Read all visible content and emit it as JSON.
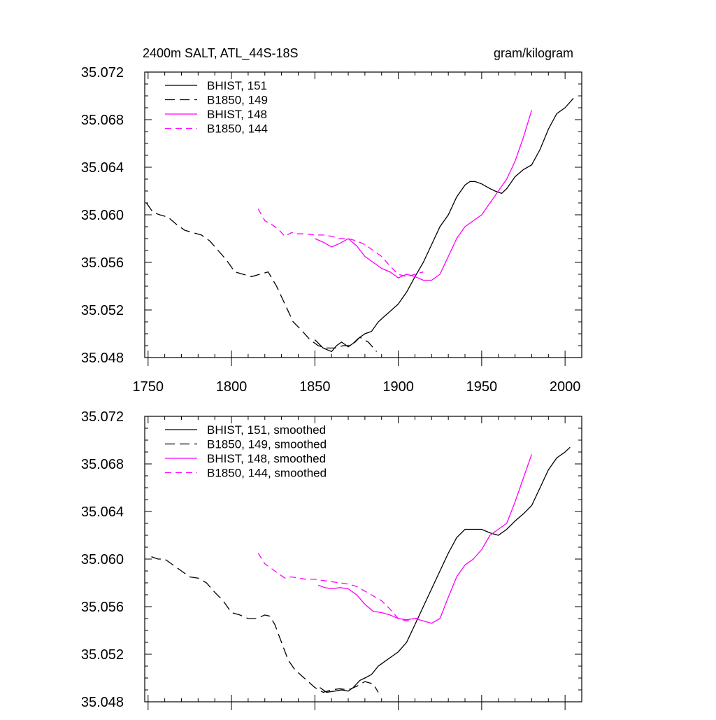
{
  "figure": {
    "title_left": "2400m SALT, ATL_44S-18S",
    "title_right": "gram/kilogram"
  },
  "colors": {
    "black": "#000000",
    "magenta": "#ff00ff"
  },
  "chart_data": [
    {
      "type": "line",
      "panel": "top",
      "title": "2400m SALT, ATL_44S-18S",
      "units": "gram/kilogram",
      "xlim": [
        1748,
        2010
      ],
      "ylim": [
        35.048,
        35.072
      ],
      "xticks": [
        1750,
        1800,
        1850,
        1900,
        1950,
        2000
      ],
      "yticks": [
        35.048,
        35.052,
        35.056,
        35.06,
        35.064,
        35.068,
        35.072
      ],
      "ytick_labels": [
        "35.048",
        "35.052",
        "35.056",
        "35.060",
        "35.064",
        "35.068",
        "35.072"
      ],
      "grid": false,
      "legend": "top-left",
      "series": [
        {
          "name": "BHIST, 151",
          "color": "#000000",
          "dash": "solid",
          "x": [
            1850,
            1855,
            1860,
            1863,
            1866,
            1870,
            1873,
            1876,
            1880,
            1884,
            1888,
            1892,
            1896,
            1900,
            1905,
            1910,
            1915,
            1920,
            1925,
            1930,
            1935,
            1940,
            1943,
            1946,
            1950,
            1955,
            1958,
            1962,
            1965,
            1970,
            1975,
            1980,
            1985,
            1990,
            1995,
            2000,
            2005
          ],
          "y": [
            35.0495,
            35.0488,
            35.0485,
            35.049,
            35.0493,
            35.0489,
            35.0492,
            35.0496,
            35.05,
            35.0502,
            35.051,
            35.0515,
            35.052,
            35.0525,
            35.0535,
            35.0548,
            35.056,
            35.0575,
            35.059,
            35.06,
            35.0615,
            35.0625,
            35.0628,
            35.0628,
            35.0626,
            35.0622,
            35.062,
            35.0618,
            35.0622,
            35.0632,
            35.0638,
            35.0642,
            35.0655,
            35.0672,
            35.0685,
            35.069,
            35.0698
          ]
        },
        {
          "name": "B1850, 149",
          "color": "#000000",
          "dash": "long",
          "x": [
            1749,
            1753,
            1757,
            1762,
            1767,
            1772,
            1777,
            1782,
            1787,
            1792,
            1797,
            1802,
            1807,
            1812,
            1817,
            1822,
            1827,
            1832,
            1837,
            1842,
            1847,
            1852,
            1857,
            1862,
            1867,
            1872,
            1877,
            1882,
            1887
          ],
          "y": [
            35.061,
            35.0602,
            35.06,
            35.0598,
            35.0592,
            35.0587,
            35.0585,
            35.0583,
            35.0578,
            35.057,
            35.0562,
            35.0552,
            35.055,
            35.0548,
            35.055,
            35.0552,
            35.054,
            35.0525,
            35.051,
            35.0503,
            35.0495,
            35.049,
            35.0488,
            35.0488,
            35.049,
            35.049,
            35.0497,
            35.0493,
            35.0485
          ]
        },
        {
          "name": "BHIST, 148",
          "color": "#ff00ff",
          "dash": "solid",
          "x": [
            1850,
            1855,
            1860,
            1865,
            1870,
            1875,
            1880,
            1885,
            1890,
            1895,
            1900,
            1905,
            1910,
            1915,
            1920,
            1925,
            1930,
            1935,
            1940,
            1945,
            1950,
            1955,
            1960,
            1965,
            1970,
            1975,
            1980
          ],
          "y": [
            35.058,
            35.0577,
            35.0573,
            35.0576,
            35.058,
            35.0574,
            35.0565,
            35.056,
            35.0555,
            35.0552,
            35.0547,
            35.055,
            35.0548,
            35.0545,
            35.0545,
            35.055,
            35.0565,
            35.058,
            35.059,
            35.0595,
            35.06,
            35.061,
            35.062,
            35.063,
            35.0645,
            35.0665,
            35.0688
          ]
        },
        {
          "name": "B1850, 144",
          "color": "#ff00ff",
          "dash": "medium",
          "x": [
            1816,
            1820,
            1824,
            1828,
            1832,
            1836,
            1840,
            1845,
            1850,
            1855,
            1860,
            1865,
            1870,
            1875,
            1880,
            1885,
            1890,
            1895,
            1900,
            1905,
            1910,
            1915
          ],
          "y": [
            35.0605,
            35.0595,
            35.0592,
            35.0588,
            35.0582,
            35.0585,
            35.0584,
            35.0584,
            35.0583,
            35.0583,
            35.0582,
            35.058,
            35.058,
            35.0578,
            35.0575,
            35.057,
            35.0565,
            35.0557,
            35.055,
            35.0548,
            35.055,
            35.0552
          ]
        }
      ]
    },
    {
      "type": "line",
      "panel": "bottom",
      "xlim": [
        1748,
        2010
      ],
      "ylim": [
        35.048,
        35.072
      ],
      "xticks": [
        1750,
        1800,
        1850,
        1900,
        1950,
        2000
      ],
      "yticks": [
        35.048,
        35.052,
        35.056,
        35.06,
        35.064,
        35.068,
        35.072
      ],
      "ytick_labels": [
        "35.048",
        "35.052",
        "35.056",
        "35.060",
        "35.064",
        "35.068",
        "35.072"
      ],
      "grid": false,
      "legend": "top-left",
      "series": [
        {
          "name": "BHIST, 151, smoothed",
          "color": "#000000",
          "dash": "solid",
          "x": [
            1853,
            1857,
            1862,
            1866,
            1870,
            1873,
            1877,
            1880,
            1884,
            1888,
            1892,
            1896,
            1900,
            1905,
            1910,
            1915,
            1920,
            1925,
            1930,
            1935,
            1940,
            1945,
            1950,
            1955,
            1960,
            1965,
            1970,
            1975,
            1980,
            1985,
            1990,
            1995,
            2000,
            2003
          ],
          "y": [
            35.0492,
            35.0488,
            35.0489,
            35.049,
            35.0489,
            35.0492,
            35.0498,
            35.05,
            35.0503,
            35.051,
            35.0514,
            35.0518,
            35.0522,
            35.053,
            35.0545,
            35.056,
            35.0575,
            35.059,
            35.0605,
            35.0618,
            35.0625,
            35.0625,
            35.0625,
            35.0622,
            35.062,
            35.0625,
            35.0632,
            35.0638,
            35.0645,
            35.066,
            35.0675,
            35.0685,
            35.069,
            35.0694
          ]
        },
        {
          "name": "B1850, 149, smoothed",
          "color": "#000000",
          "dash": "long",
          "x": [
            1752,
            1756,
            1760,
            1765,
            1770,
            1775,
            1780,
            1785,
            1790,
            1795,
            1800,
            1805,
            1810,
            1815,
            1820,
            1823,
            1826,
            1830,
            1834,
            1838,
            1842,
            1846,
            1850,
            1855,
            1860,
            1865,
            1870,
            1875,
            1880,
            1885,
            1888
          ],
          "y": [
            35.0602,
            35.06,
            35.06,
            35.0595,
            35.059,
            35.0585,
            35.0584,
            35.058,
            35.0572,
            35.0565,
            35.0555,
            35.0553,
            35.055,
            35.055,
            35.0553,
            35.0552,
            35.0545,
            35.053,
            35.0515,
            35.0507,
            35.0502,
            35.0497,
            35.0492,
            35.0488,
            35.049,
            35.0491,
            35.049,
            35.0493,
            35.0497,
            35.0495,
            35.0488
          ]
        },
        {
          "name": "BHIST, 148, smoothed",
          "color": "#ff00ff",
          "dash": "solid",
          "x": [
            1852,
            1856,
            1860,
            1865,
            1870,
            1875,
            1880,
            1885,
            1890,
            1895,
            1900,
            1905,
            1910,
            1915,
            1920,
            1925,
            1930,
            1935,
            1940,
            1945,
            1950,
            1955,
            1960,
            1965,
            1970,
            1975,
            1980
          ],
          "y": [
            35.0578,
            35.0576,
            35.0575,
            35.0576,
            35.0575,
            35.057,
            35.0562,
            35.0556,
            35.0555,
            35.0553,
            35.055,
            35.0549,
            35.055,
            35.0548,
            35.0546,
            35.055,
            35.0568,
            35.0585,
            35.0595,
            35.06,
            35.0608,
            35.062,
            35.0625,
            35.063,
            35.0648,
            35.0668,
            35.0688
          ]
        },
        {
          "name": "B1850, 144, smoothed",
          "color": "#ff00ff",
          "dash": "medium",
          "x": [
            1816,
            1820,
            1824,
            1828,
            1832,
            1836,
            1840,
            1845,
            1850,
            1855,
            1860,
            1865,
            1870,
            1875,
            1880,
            1885,
            1890,
            1895,
            1900,
            1905,
            1910,
            1915
          ],
          "y": [
            35.0605,
            35.0596,
            35.0592,
            35.0588,
            35.0584,
            35.0585,
            35.0584,
            35.0583,
            35.0583,
            35.0582,
            35.0581,
            35.058,
            35.0579,
            35.0577,
            35.0573,
            35.0569,
            35.0565,
            35.0558,
            35.055,
            35.0548,
            35.055,
            35.0551
          ]
        }
      ]
    }
  ]
}
